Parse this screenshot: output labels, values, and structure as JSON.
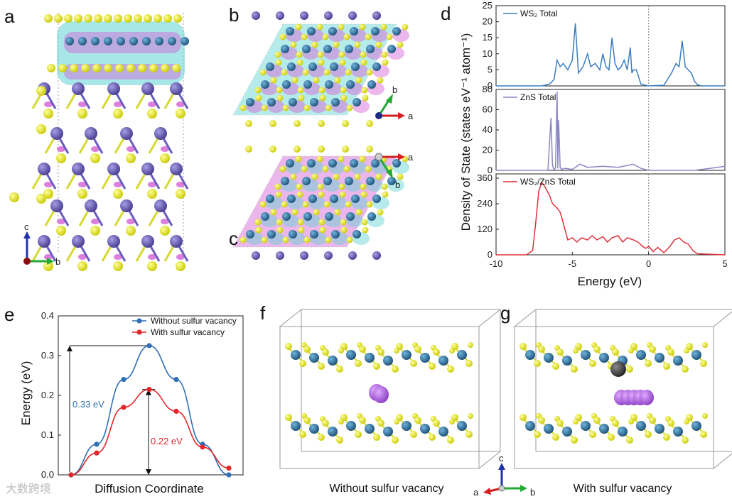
{
  "panels": {
    "a": "a",
    "b": "b",
    "c": "c",
    "d": "d",
    "e": "e",
    "f": "f",
    "g": "g"
  },
  "axis_labels": {
    "a_c": "c",
    "a_b": "b",
    "b_a": "a",
    "b_b": "b",
    "c_a": "a",
    "c_b": "b",
    "fg_c": "c",
    "fg_a": "a",
    "fg_b": "b"
  },
  "captions": {
    "f": "Without sulfur vacancy",
    "g": "With sulfur vacancy"
  },
  "watermark": "大数跨境",
  "colors": {
    "ws2": "#3a7dc0",
    "zns": "#8c86c6",
    "wsz": "#e0303a",
    "blue": "#2e6fb5",
    "red": "#e3262b",
    "sulfur": "#e6e619",
    "tungsten": "#2f6f9a",
    "zinc": "#7064b4",
    "iso_cyan": "#5fd3d3",
    "iso_magenta": "#d45fd4"
  },
  "chart_data": [
    {
      "type": "line",
      "panel": "d",
      "xlabel": "Energy (eV)",
      "ylabel": "Density of State (states eV⁻¹ atom⁻¹)",
      "xlim": [
        -10,
        5
      ],
      "xticks": [
        "-10",
        "-5",
        "0",
        "5"
      ],
      "subplots": [
        {
          "name": "WS₂ Total",
          "ylim": [
            0,
            25
          ],
          "yticks": [
            "0",
            "5",
            "10",
            "15",
            "20",
            "25"
          ],
          "x": [
            -10,
            -7,
            -6.5,
            -6.2,
            -6.0,
            -5.8,
            -5.6,
            -5.3,
            -5.0,
            -4.8,
            -4.6,
            -4.3,
            -4.0,
            -3.8,
            -3.5,
            -3.2,
            -3.0,
            -2.8,
            -2.6,
            -2.4,
            -2.2,
            -2.0,
            -1.8,
            -1.6,
            -1.4,
            -1.2,
            -1.1,
            -1.0,
            -0.8,
            -0.5,
            0,
            1.0,
            1.5,
            1.8,
            2.0,
            2.2,
            2.4,
            2.6,
            2.8,
            3.0,
            3.2,
            3.5,
            5
          ],
          "y": [
            0,
            0,
            0.5,
            2,
            8,
            6,
            7,
            5,
            8,
            19.5,
            4,
            6,
            10,
            6,
            7,
            5,
            10,
            6,
            5,
            15,
            7,
            5,
            6,
            8,
            5,
            12,
            4,
            5,
            5,
            0.5,
            0,
            0.2,
            4,
            7,
            6,
            14,
            6,
            5,
            4,
            1.5,
            0.3,
            0,
            0
          ]
        },
        {
          "name": "ZnS Total",
          "ylim": [
            0,
            80
          ],
          "yticks": [
            "0",
            "20",
            "40",
            "60",
            "80"
          ],
          "x": [
            -10,
            -6.6,
            -6.4,
            -6.3,
            -6.2,
            -6.1,
            -6.0,
            -5.95,
            -5.9,
            -5.8,
            -5.7,
            -5.5,
            -5.0,
            -4.5,
            -4.0,
            -3.0,
            -2.0,
            -1.0,
            -0.5,
            0,
            2.0,
            3.0,
            4.0,
            5
          ],
          "y": [
            0,
            0,
            52,
            5,
            0,
            3,
            78,
            2,
            50,
            3,
            1,
            2,
            1,
            6,
            3,
            4,
            3,
            6,
            2,
            0,
            0,
            0,
            2,
            4
          ]
        },
        {
          "name": "WS₂/ZnS Total",
          "ylim": [
            0,
            380
          ],
          "yticks": [
            "0",
            "120",
            "240",
            "360"
          ],
          "x": [
            -10,
            -8.0,
            -7.6,
            -7.4,
            -7.2,
            -7.0,
            -6.8,
            -6.5,
            -6.3,
            -6.0,
            -5.8,
            -5.6,
            -5.3,
            -5.0,
            -4.7,
            -4.4,
            -4.0,
            -3.7,
            -3.4,
            -3.0,
            -2.7,
            -2.4,
            -2.0,
            -1.7,
            -1.4,
            -1.0,
            -0.7,
            -0.4,
            -0.2,
            0,
            0.3,
            0.6,
            1.0,
            1.4,
            1.7,
            2.0,
            2.3,
            2.6,
            2.9,
            3.2,
            5
          ],
          "y": [
            0,
            0,
            20,
            150,
            300,
            340,
            320,
            280,
            240,
            220,
            200,
            150,
            70,
            80,
            60,
            80,
            70,
            90,
            70,
            85,
            60,
            80,
            90,
            60,
            80,
            70,
            60,
            40,
            30,
            40,
            15,
            35,
            10,
            40,
            70,
            80,
            60,
            50,
            20,
            5,
            0
          ]
        }
      ]
    },
    {
      "type": "line",
      "panel": "e",
      "xlabel": "Diffusion Coordinate",
      "ylabel": "Energy (eV)",
      "ylim": [
        0,
        0.4
      ],
      "yticks": [
        "0.0",
        "0.1",
        "0.2",
        "0.3",
        "0.4"
      ],
      "series": [
        {
          "name": "Without sulfur vacancy",
          "x": [
            0,
            1,
            2,
            3,
            4,
            5,
            6
          ],
          "y": [
            0.0,
            0.077,
            0.24,
            0.325,
            0.24,
            0.077,
            0.0
          ]
        },
        {
          "name": "With sulfur vacancy",
          "x": [
            0,
            1,
            2,
            3,
            4,
            5,
            6
          ],
          "y": [
            0.0,
            0.055,
            0.17,
            0.215,
            0.16,
            0.07,
            0.017
          ]
        }
      ],
      "annotations": [
        "0.33 eV",
        "0.22 eV"
      ]
    }
  ]
}
